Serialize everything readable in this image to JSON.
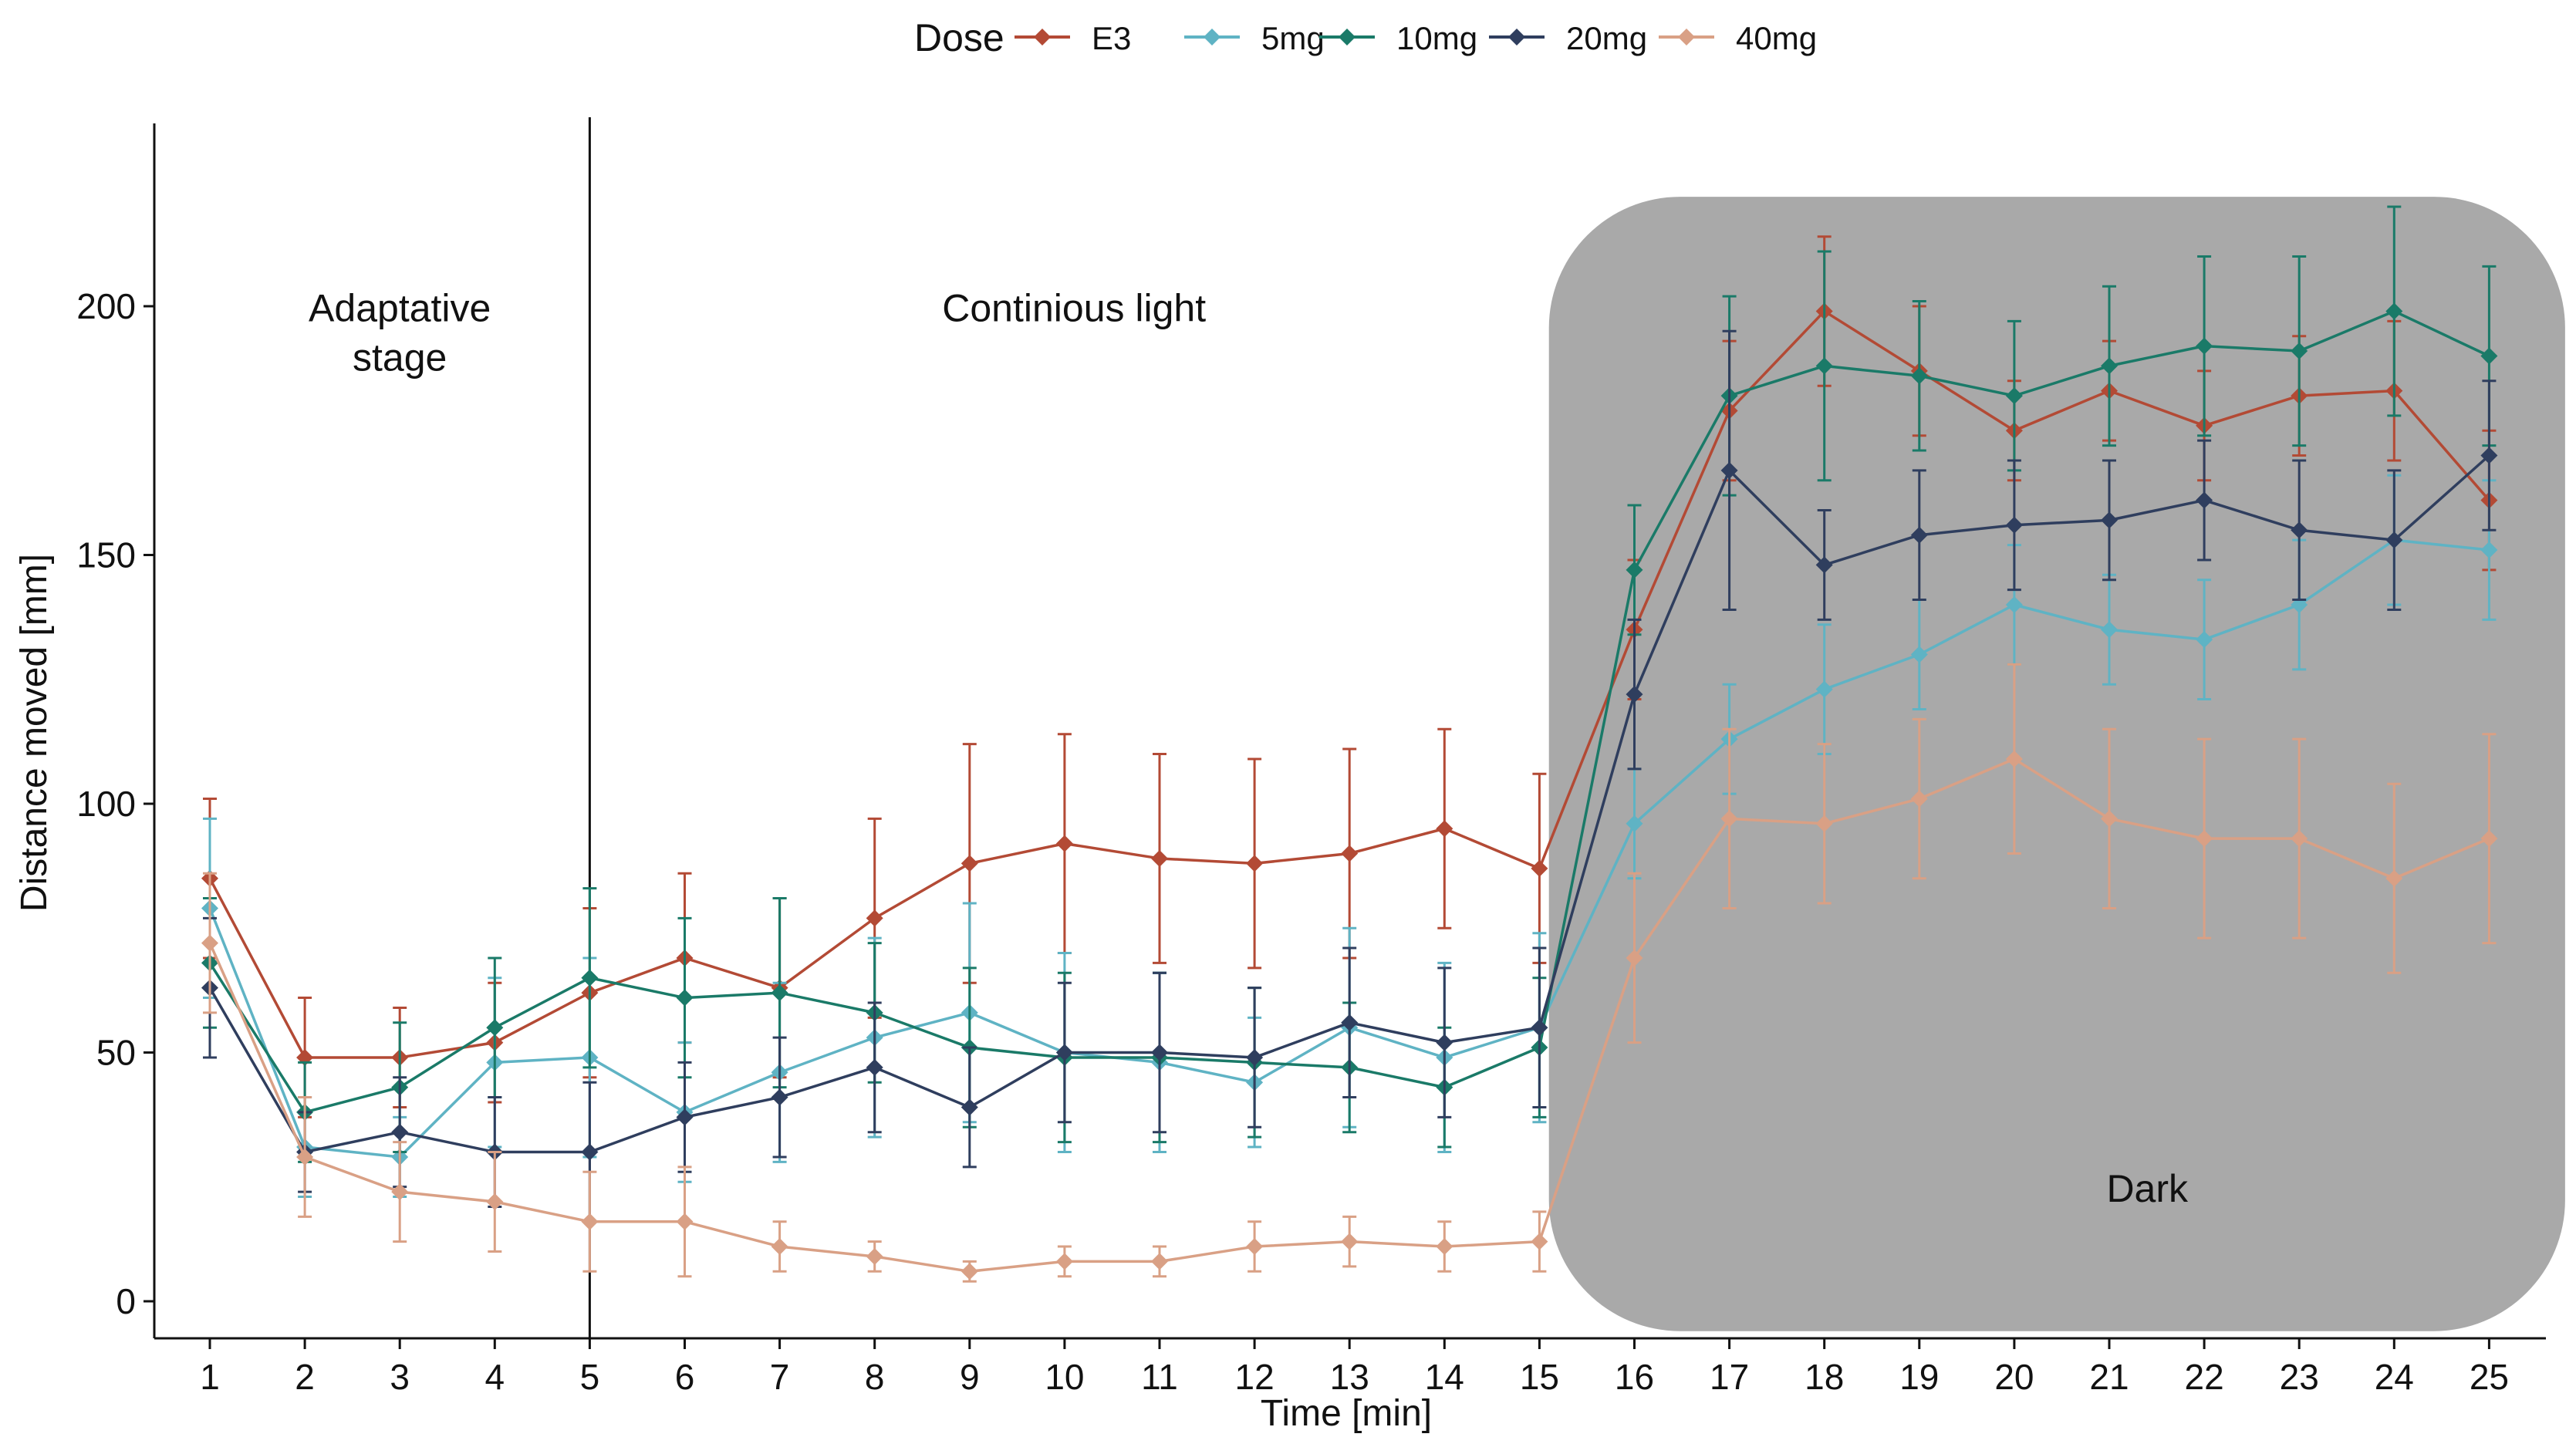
{
  "chart_data": {
    "type": "line",
    "title": "",
    "xlabel": "Time [min]",
    "ylabel": "Distance moved [mm]",
    "xlim": [
      0.4,
      25.3
    ],
    "ylim": [
      -8,
      236
    ],
    "x": [
      1,
      2,
      3,
      4,
      5,
      6,
      7,
      8,
      9,
      10,
      11,
      12,
      13,
      14,
      15,
      16,
      17,
      18,
      19,
      20,
      21,
      22,
      23,
      24,
      25
    ],
    "y_ticks": [
      0,
      50,
      100,
      150,
      200
    ],
    "legend": {
      "title": "Dose",
      "position": "top",
      "labels": [
        "E3",
        "5mg",
        "10mg",
        "20mg",
        "40mg"
      ]
    },
    "series": [
      {
        "name": "E3",
        "color": "#b34a35",
        "values": [
          85,
          49,
          49,
          52,
          62,
          69,
          63,
          77,
          88,
          92,
          89,
          88,
          90,
          95,
          87,
          135,
          179,
          199,
          187,
          175,
          183,
          176,
          182,
          183,
          161
        ],
        "errors": [
          16,
          12,
          10,
          12,
          17,
          17,
          18,
          20,
          24,
          22,
          21,
          21,
          21,
          20,
          19,
          14,
          14,
          15,
          13,
          10,
          10,
          11,
          12,
          14,
          14
        ]
      },
      {
        "name": "5mg",
        "color": "#5fb3c4",
        "values": [
          79,
          31,
          29,
          48,
          49,
          38,
          46,
          53,
          58,
          50,
          48,
          44,
          55,
          49,
          55,
          96,
          113,
          123,
          130,
          140,
          135,
          133,
          140,
          153,
          151
        ],
        "errors": [
          18,
          10,
          8,
          17,
          20,
          14,
          18,
          20,
          22,
          20,
          18,
          13,
          20,
          19,
          19,
          11,
          11,
          13,
          11,
          12,
          11,
          12,
          13,
          13,
          14
        ]
      },
      {
        "name": "10mg",
        "color": "#1a7a68",
        "values": [
          68,
          38,
          43,
          55,
          65,
          61,
          62,
          58,
          51,
          49,
          49,
          48,
          47,
          43,
          51,
          147,
          182,
          188,
          186,
          182,
          188,
          192,
          191,
          199,
          190
        ],
        "errors": [
          13,
          10,
          13,
          14,
          18,
          16,
          19,
          14,
          16,
          17,
          17,
          15,
          13,
          12,
          14,
          13,
          20,
          23,
          15,
          15,
          16,
          18,
          19,
          21,
          18
        ]
      },
      {
        "name": "20mg",
        "color": "#2f3e5e",
        "values": [
          63,
          30,
          34,
          30,
          30,
          37,
          41,
          47,
          39,
          50,
          50,
          49,
          56,
          52,
          55,
          122,
          167,
          148,
          154,
          156,
          157,
          161,
          155,
          153,
          170
        ],
        "errors": [
          14,
          8,
          11,
          11,
          14,
          11,
          12,
          13,
          12,
          14,
          16,
          14,
          15,
          15,
          16,
          15,
          28,
          11,
          13,
          13,
          12,
          12,
          14,
          14,
          15
        ]
      },
      {
        "name": "40mg",
        "color": "#d9a085",
        "values": [
          72,
          29,
          22,
          20,
          16,
          16,
          11,
          9,
          6,
          8,
          8,
          11,
          12,
          11,
          12,
          69,
          97,
          96,
          101,
          109,
          97,
          93,
          93,
          85,
          93
        ],
        "errors": [
          14,
          12,
          10,
          10,
          10,
          11,
          5,
          3,
          2,
          3,
          3,
          5,
          5,
          5,
          6,
          17,
          18,
          16,
          16,
          19,
          18,
          20,
          20,
          19,
          21
        ]
      }
    ],
    "annotations": [
      {
        "id": "adaptative",
        "lines": [
          "Adaptative",
          "stage"
        ],
        "x": 3,
        "y": 197
      },
      {
        "id": "continuous",
        "lines": [
          "Continious light"
        ],
        "x": 10.1,
        "y": 197
      },
      {
        "id": "dark",
        "lines": [
          "Dark"
        ],
        "x": 21.4,
        "y": 20
      }
    ],
    "vertical_line_x": 5,
    "dark_region": {
      "x_start": 15.1,
      "x_end": 25.8,
      "y_start": -6,
      "y_end": 222,
      "color": "#a9a9a9"
    }
  }
}
